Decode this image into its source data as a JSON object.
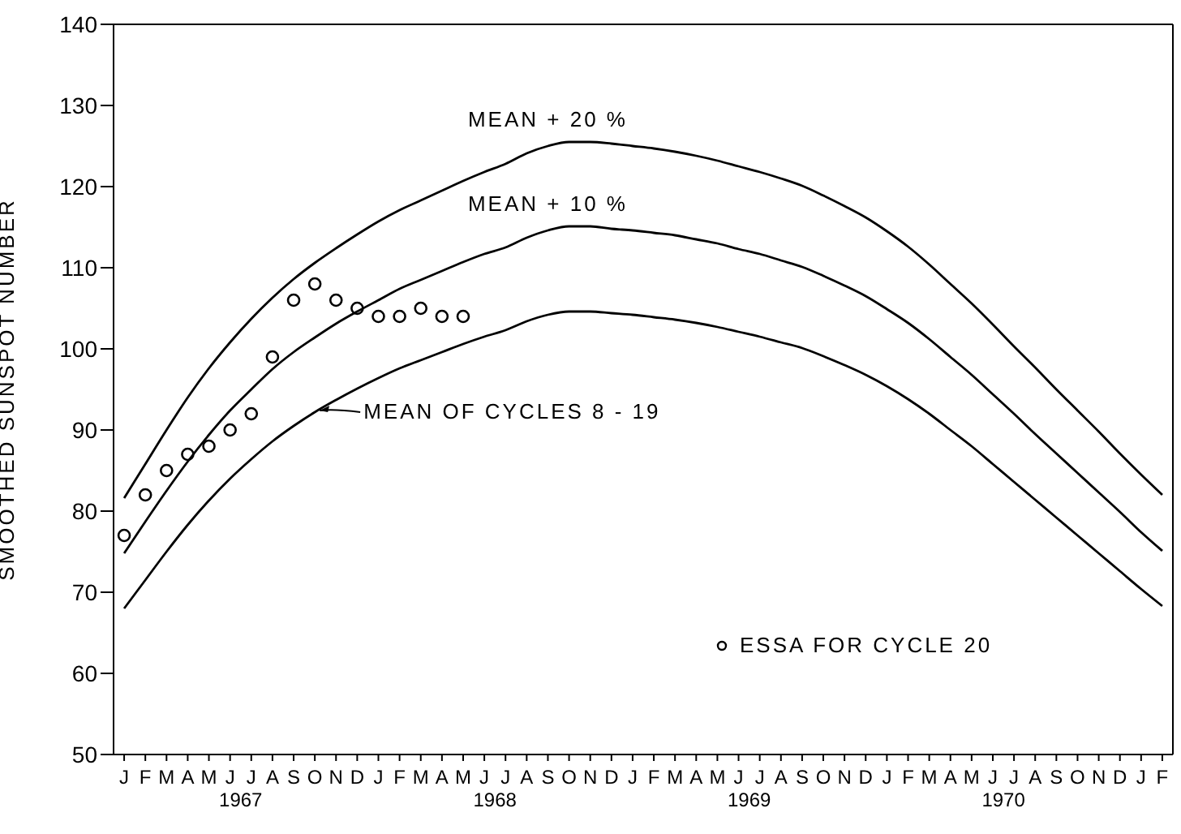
{
  "chart_data": {
    "type": "line",
    "ylabel": "SMOOTHED SUNSPOT NUMBER",
    "categories": [
      "J",
      "F",
      "M",
      "A",
      "M",
      "J",
      "J",
      "A",
      "S",
      "O",
      "N",
      "D",
      "J",
      "F",
      "M",
      "A",
      "M",
      "J",
      "J",
      "A",
      "S",
      "O",
      "N",
      "D",
      "J",
      "F",
      "M",
      "A",
      "M",
      "J",
      "J",
      "A",
      "S",
      "O",
      "N",
      "D",
      "J",
      "F",
      "M",
      "A",
      "M",
      "J",
      "J",
      "A",
      "S",
      "O",
      "N",
      "D",
      "J",
      "F"
    ],
    "annotations": [
      "1967",
      "1968",
      "1969",
      "1970"
    ],
    "ylim": [
      50,
      140
    ],
    "yticks": [
      50,
      60,
      70,
      80,
      90,
      100,
      110,
      120,
      130,
      140
    ],
    "grid": false,
    "legend": "bottom right",
    "marker": "none",
    "line_style": "solid",
    "series": [
      {
        "name": "MEAN + 20 %",
        "color": "#000000",
        "values": [
          81.6,
          85.8,
          90,
          94,
          97.6,
          100.8,
          103.7,
          106.3,
          108.6,
          110.6,
          112.4,
          114.1,
          115.7,
          117.1,
          118.3,
          119.5,
          120.7,
          121.8,
          122.8,
          124.1,
          125,
          125.5,
          125.5,
          125.3,
          125,
          124.7,
          124.3,
          123.8,
          123.2,
          122.5,
          121.8,
          121,
          120.1,
          118.9,
          117.6,
          116.2,
          114.5,
          112.6,
          110.4,
          108,
          105.6,
          103,
          100.3,
          97.7,
          95,
          92.4,
          89.8,
          87.1,
          84.5,
          82
        ]
      },
      {
        "name": "MEAN + 10 %",
        "color": "#000000",
        "values": [
          74.8,
          78.7,
          82.5,
          86.1,
          89.4,
          92.4,
          95,
          97.5,
          99.6,
          101.4,
          103.1,
          104.6,
          106,
          107.4,
          108.5,
          109.6,
          110.7,
          111.7,
          112.5,
          113.7,
          114.6,
          115.1,
          115.1,
          114.8,
          114.6,
          114.3,
          114,
          113.5,
          113,
          112.3,
          111.7,
          110.9,
          110.1,
          109,
          107.8,
          106.5,
          104.9,
          103.2,
          101.2,
          99,
          96.8,
          94.4,
          92,
          89.5,
          87.1,
          84.7,
          82.3,
          79.9,
          77.4,
          75.1
        ]
      },
      {
        "name": "MEAN OF CYCLES 8 - 19",
        "color": "#000000",
        "values": [
          68,
          71.5,
          75,
          78.3,
          81.3,
          84,
          86.4,
          88.6,
          90.5,
          92.2,
          93.7,
          95.1,
          96.4,
          97.6,
          98.6,
          99.6,
          100.6,
          101.5,
          102.3,
          103.4,
          104.2,
          104.6,
          104.6,
          104.4,
          104.2,
          103.9,
          103.6,
          103.2,
          102.7,
          102.1,
          101.5,
          100.8,
          100.1,
          99.1,
          98,
          96.8,
          95.4,
          93.8,
          92,
          90,
          88,
          85.8,
          83.6,
          81.4,
          79.2,
          77,
          74.8,
          72.6,
          70.4,
          68.3
        ]
      },
      {
        "name": "ESSA FOR CYCLE 20",
        "type": "scatter",
        "marker": "circle",
        "color": "#000000",
        "values": [
          77,
          82,
          85,
          87,
          88,
          90,
          92,
          99,
          106,
          108,
          106,
          105,
          104,
          104,
          105,
          104,
          104,
          null,
          null,
          null,
          null,
          null,
          null,
          null,
          null,
          null,
          null,
          null,
          null,
          null,
          null,
          null,
          null,
          null,
          null,
          null,
          null,
          null,
          null,
          null,
          null,
          null,
          null,
          null,
          null,
          null,
          null,
          null,
          null,
          null
        ]
      }
    ]
  }
}
